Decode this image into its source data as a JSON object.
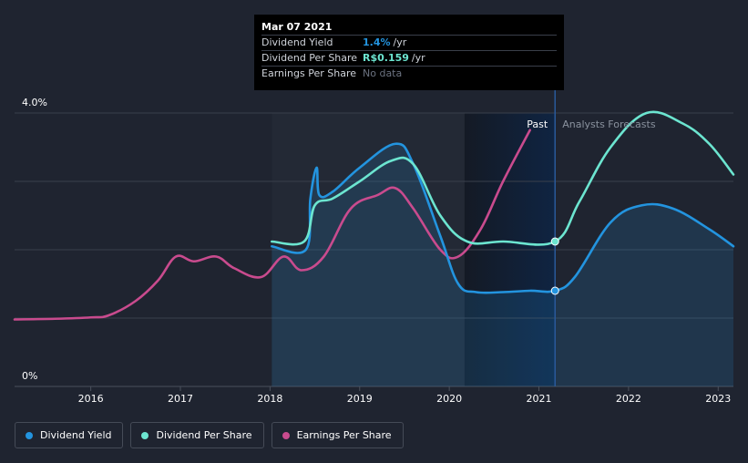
{
  "tooltip": {
    "date": "Mar 07 2021",
    "rows": [
      {
        "label": "Dividend Yield",
        "value": "1.4%",
        "unit": "/yr",
        "color": "#2394df"
      },
      {
        "label": "Dividend Per Share",
        "value": "R$0.159",
        "unit": "/yr",
        "color": "#6ce5d0"
      },
      {
        "label": "Earnings Per Share",
        "value": "No data",
        "unit": "",
        "color": "#6b7280"
      }
    ]
  },
  "legend": [
    {
      "label": "Dividend Yield",
      "color": "#2394df"
    },
    {
      "label": "Dividend Per Share",
      "color": "#6ce5d0"
    },
    {
      "label": "Earnings Per Share",
      "color": "#c94b8e"
    }
  ],
  "chart_data": {
    "type": "line",
    "y_axis": {
      "min": 0,
      "max": 4,
      "unit": "%",
      "tick_labels": [
        "4.0%",
        "0%"
      ]
    },
    "x_axis": {
      "tick_labels": [
        "2016",
        "2017",
        "2018",
        "2019",
        "2020",
        "2021",
        "2022",
        "2023"
      ],
      "ticks": [
        2016,
        2017,
        2018,
        2019,
        2020,
        2021,
        2022,
        2023
      ]
    },
    "x_range": [
      2015.15,
      2023.17
    ],
    "regions": {
      "past_label": "Past",
      "forecast_label": "Analysts Forecasts",
      "divider_x": 2021.18,
      "highlight_start": 2020.17
    },
    "series": [
      {
        "name": "Dividend Yield",
        "color": "#2394df",
        "area": true,
        "points": [
          [
            2018.02,
            2.05
          ],
          [
            2018.4,
            2.0
          ],
          [
            2018.45,
            2.75
          ],
          [
            2018.52,
            3.2
          ],
          [
            2018.55,
            2.8
          ],
          [
            2018.7,
            2.85
          ],
          [
            2019.0,
            3.2
          ],
          [
            2019.4,
            3.55
          ],
          [
            2019.6,
            3.25
          ],
          [
            2019.9,
            2.2
          ],
          [
            2020.1,
            1.5
          ],
          [
            2020.3,
            1.38
          ],
          [
            2020.6,
            1.38
          ],
          [
            2020.9,
            1.4
          ],
          [
            2021.18,
            1.4
          ],
          [
            2021.4,
            1.6
          ],
          [
            2021.8,
            2.4
          ],
          [
            2022.15,
            2.65
          ],
          [
            2022.5,
            2.6
          ],
          [
            2022.9,
            2.3
          ],
          [
            2023.17,
            2.05
          ]
        ]
      },
      {
        "name": "Dividend Per Share",
        "color": "#6ce5d0",
        "area": false,
        "points": [
          [
            2018.02,
            2.12
          ],
          [
            2018.38,
            2.12
          ],
          [
            2018.5,
            2.65
          ],
          [
            2018.7,
            2.75
          ],
          [
            2019.0,
            3.0
          ],
          [
            2019.35,
            3.3
          ],
          [
            2019.6,
            3.25
          ],
          [
            2019.9,
            2.5
          ],
          [
            2020.2,
            2.12
          ],
          [
            2020.6,
            2.12
          ],
          [
            2021.18,
            2.12
          ],
          [
            2021.45,
            2.7
          ],
          [
            2021.8,
            3.5
          ],
          [
            2022.2,
            4.0
          ],
          [
            2022.6,
            3.85
          ],
          [
            2022.9,
            3.55
          ],
          [
            2023.17,
            3.1
          ]
        ]
      },
      {
        "name": "Earnings Per Share",
        "color": "#c94b8e",
        "area": false,
        "points": [
          [
            2015.15,
            0.98
          ],
          [
            2015.6,
            0.99
          ],
          [
            2016.0,
            1.01
          ],
          [
            2016.2,
            1.04
          ],
          [
            2016.5,
            1.25
          ],
          [
            2016.75,
            1.55
          ],
          [
            2016.95,
            1.9
          ],
          [
            2017.15,
            1.83
          ],
          [
            2017.4,
            1.9
          ],
          [
            2017.6,
            1.73
          ],
          [
            2017.9,
            1.6
          ],
          [
            2018.15,
            1.9
          ],
          [
            2018.35,
            1.7
          ],
          [
            2018.6,
            1.9
          ],
          [
            2018.9,
            2.6
          ],
          [
            2019.2,
            2.8
          ],
          [
            2019.4,
            2.9
          ],
          [
            2019.6,
            2.6
          ],
          [
            2019.9,
            2.0
          ],
          [
            2020.1,
            1.9
          ],
          [
            2020.35,
            2.3
          ],
          [
            2020.6,
            3.0
          ],
          [
            2020.9,
            3.75
          ]
        ]
      }
    ],
    "highlight_markers": [
      {
        "series": "Dividend Yield",
        "x": 2021.18,
        "y": 1.4
      },
      {
        "series": "Dividend Per Share",
        "x": 2021.18,
        "y": 2.12
      }
    ]
  }
}
